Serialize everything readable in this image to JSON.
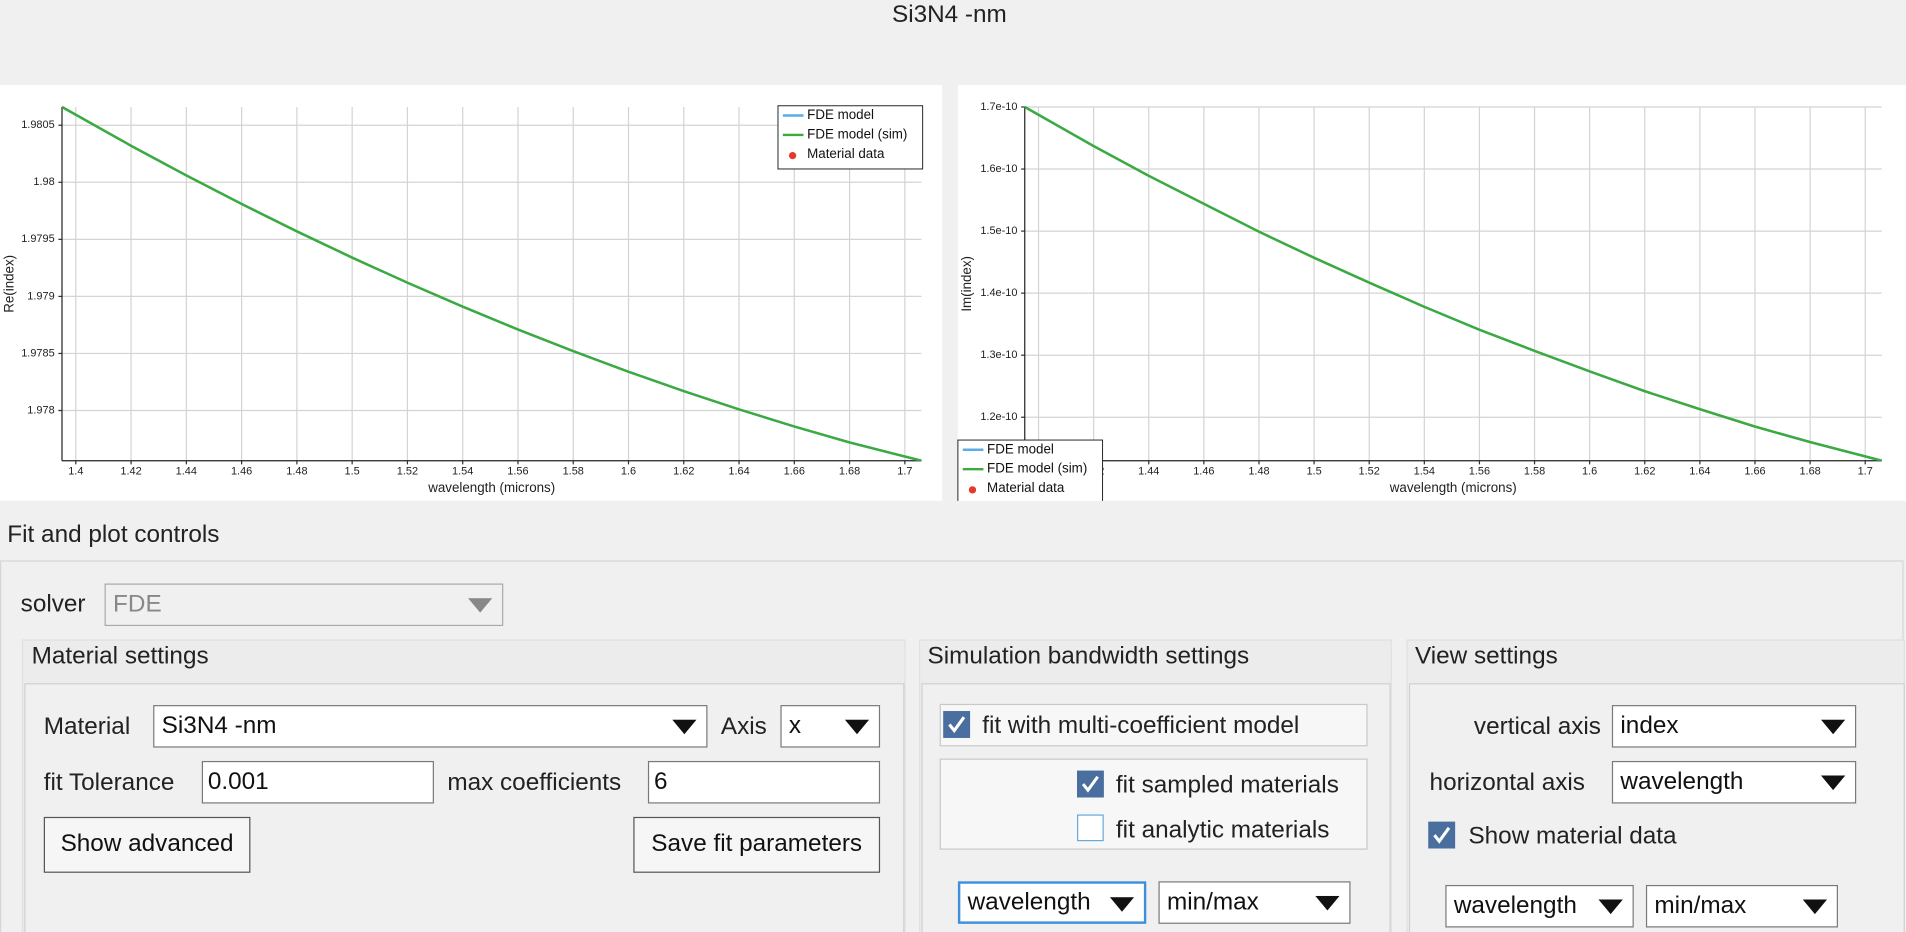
{
  "window_title": "Si3N4 -nm",
  "chart_data": [
    {
      "type": "line",
      "xlabel": "wavelength (microns)",
      "ylabel": "Re(index)",
      "x": [
        1.395,
        1.42,
        1.44,
        1.46,
        1.48,
        1.5,
        1.52,
        1.54,
        1.56,
        1.58,
        1.6,
        1.62,
        1.64,
        1.66,
        1.68,
        1.706
      ],
      "series": [
        {
          "name": "FDE model",
          "color": "#5aaee8",
          "mode": "lines",
          "values": [
            1.98066,
            1.98032,
            1.98006,
            1.97981,
            1.97957,
            1.97934,
            1.97912,
            1.97891,
            1.97871,
            1.97852,
            1.97834,
            1.97817,
            1.97801,
            1.97786,
            1.97772,
            1.97756
          ]
        },
        {
          "name": "FDE model (sim)",
          "color": "#3cab3c",
          "mode": "lines",
          "values": [
            1.98066,
            1.98032,
            1.98006,
            1.97981,
            1.97957,
            1.97934,
            1.97912,
            1.97891,
            1.97871,
            1.97852,
            1.97834,
            1.97817,
            1.97801,
            1.97786,
            1.97772,
            1.97756
          ]
        },
        {
          "name": "Material data",
          "color": "#e8382c",
          "mode": "markers",
          "values": [
            null,
            null,
            null,
            null,
            null,
            null,
            null,
            null,
            null,
            null,
            null,
            null,
            null,
            null,
            null,
            null
          ]
        }
      ],
      "xlim": [
        1.395,
        1.706
      ],
      "xticks": [
        1.4,
        1.42,
        1.44,
        1.46,
        1.48,
        1.5,
        1.52,
        1.54,
        1.56,
        1.58,
        1.6,
        1.62,
        1.64,
        1.66,
        1.68,
        1.7
      ],
      "ylim": [
        1.97756,
        1.98066
      ],
      "yticks": [
        1.978,
        1.9785,
        1.979,
        1.9795,
        1.98,
        1.9805
      ],
      "grid": true,
      "legend": "upper right"
    },
    {
      "type": "line",
      "xlabel": "wavelength (microns)",
      "ylabel": "Im(index)",
      "x": [
        1.395,
        1.42,
        1.44,
        1.46,
        1.48,
        1.5,
        1.52,
        1.54,
        1.56,
        1.58,
        1.6,
        1.62,
        1.64,
        1.66,
        1.68,
        1.706
      ],
      "series": [
        {
          "name": "FDE model",
          "color": "#5aaee8",
          "mode": "lines",
          "values": [
            1.7e-10,
            1.637e-10,
            1.589e-10,
            1.544e-10,
            1.499e-10,
            1.457e-10,
            1.417e-10,
            1.378e-10,
            1.341e-10,
            1.307e-10,
            1.274e-10,
            1.242e-10,
            1.213e-10,
            1.185e-10,
            1.16e-10,
            1.13e-10
          ]
        },
        {
          "name": "FDE model (sim)",
          "color": "#3cab3c",
          "mode": "lines",
          "values": [
            1.7e-10,
            1.637e-10,
            1.589e-10,
            1.544e-10,
            1.499e-10,
            1.457e-10,
            1.417e-10,
            1.378e-10,
            1.341e-10,
            1.307e-10,
            1.274e-10,
            1.242e-10,
            1.213e-10,
            1.185e-10,
            1.16e-10,
            1.13e-10
          ]
        },
        {
          "name": "Material data",
          "color": "#e8382c",
          "mode": "markers",
          "values": [
            null,
            null,
            null,
            null,
            null,
            null,
            null,
            null,
            null,
            null,
            null,
            null,
            null,
            null,
            null,
            null
          ]
        }
      ],
      "xlim": [
        1.395,
        1.706
      ],
      "xticks": [
        1.4,
        1.42,
        1.44,
        1.46,
        1.48,
        1.5,
        1.52,
        1.54,
        1.56,
        1.58,
        1.6,
        1.62,
        1.64,
        1.66,
        1.68,
        1.7
      ],
      "ylim": [
        1.13e-10,
        1.7e-10
      ],
      "yticks": [
        1.2e-10,
        1.3e-10,
        1.4e-10,
        1.5e-10,
        1.6e-10,
        1.7e-10
      ],
      "grid": true,
      "legend": "lower left"
    }
  ],
  "controls": {
    "title": "Fit and plot controls",
    "solver": {
      "label": "solver",
      "value": "FDE"
    },
    "material_settings": {
      "title": "Material settings",
      "material_label": "Material",
      "material_value": "Si3N4 -nm",
      "axis_label": "Axis",
      "axis_value": "x",
      "fit_tolerance_label": "fit Tolerance",
      "fit_tolerance_value": "0.001",
      "max_coefficients_label": "max coefficients",
      "max_coefficients_value": "6",
      "show_advanced": "Show advanced",
      "save_fit_parameters": "Save fit parameters"
    },
    "simulation_bandwidth_settings": {
      "title": "Simulation bandwidth settings",
      "fit_multi_coefficient": {
        "label": "fit with multi-coefficient model",
        "checked": true
      },
      "fit_sampled": {
        "label": "fit sampled materials",
        "checked": true
      },
      "fit_analytic": {
        "label": "fit analytic materials",
        "checked": false
      },
      "range_variable": "wavelength",
      "range_mode": "min/max"
    },
    "view_settings": {
      "title": "View settings",
      "vertical_axis_label": "vertical axis",
      "vertical_axis_value": "index",
      "horizontal_axis_label": "horizontal axis",
      "horizontal_axis_value": "wavelength",
      "show_material_data": {
        "label": "Show material data",
        "checked": true
      },
      "range_variable": "wavelength",
      "range_mode": "min/max"
    }
  }
}
